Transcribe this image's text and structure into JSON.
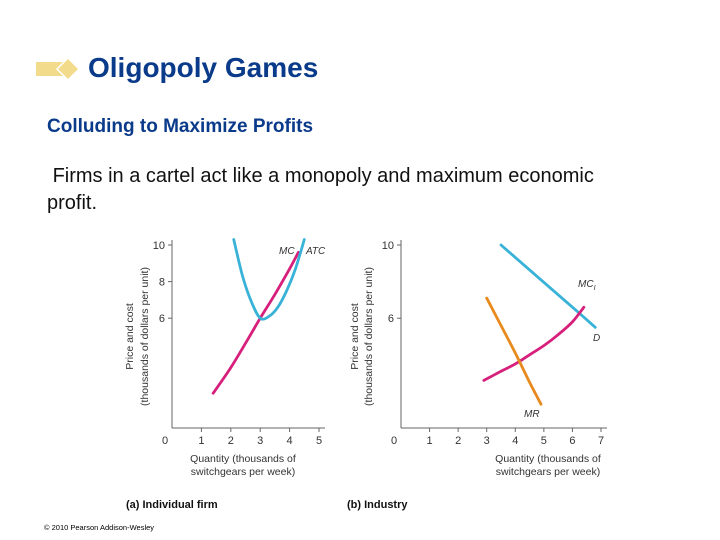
{
  "slide": {
    "title": "Oligopoly Games",
    "subtitle": "Colluding to Maximize Profits",
    "body": "Firms in a cartel act like a monopoly and maximum economic profit.",
    "copyright": "© 2010 Pearson Addison-Wesley",
    "bullet_color": "#f2dc8c"
  },
  "chart_data": [
    {
      "type": "line",
      "panel_label": "(a) Individual firm",
      "xlabel_lines": [
        "Quantity (thousands of",
        "switchgears per week)"
      ],
      "ylabel_lines": [
        "Price and cost",
        "(thousands of dollars per unit)"
      ],
      "xlim": [
        0,
        5
      ],
      "ylim": [
        0,
        10
      ],
      "x_ticks": [
        0,
        1,
        2,
        3,
        4,
        5
      ],
      "y_ticks": [
        6,
        8,
        10
      ],
      "series": [
        {
          "name": "MC",
          "color": "#d6207c",
          "x": [
            1.4,
            2.0,
            2.6,
            3.0,
            3.5,
            4.0,
            4.3
          ],
          "y": [
            1.9,
            3.3,
            4.9,
            6.0,
            7.3,
            8.7,
            9.6
          ]
        },
        {
          "name": "ATC",
          "color": "#39b2d8",
          "x": [
            2.1,
            2.4,
            2.7,
            3.0,
            3.3,
            3.6,
            3.9,
            4.2,
            4.5
          ],
          "y": [
            10.3,
            8.3,
            6.9,
            6.0,
            6.1,
            6.6,
            7.5,
            8.7,
            10.3
          ]
        }
      ]
    },
    {
      "type": "line",
      "panel_label": "(b) Industry",
      "xlabel_lines": [
        "Quantity (thousands of",
        "switchgears per week)"
      ],
      "ylabel_lines": [
        "Price and cost",
        "(thousands of dollars per unit)"
      ],
      "xlim": [
        0,
        7
      ],
      "ylim": [
        0,
        10
      ],
      "x_ticks": [
        0,
        1,
        2,
        3,
        4,
        5,
        6,
        7
      ],
      "y_ticks": [
        6,
        10
      ],
      "series": [
        {
          "name": "D",
          "color": "#39b2d8",
          "x": [
            3.5,
            6.0,
            6.8
          ],
          "y": [
            10.0,
            6.6,
            5.5
          ]
        },
        {
          "name": "MC_I",
          "color": "#d6207c",
          "x": [
            2.9,
            3.5,
            4.0,
            4.5,
            5.0,
            5.5,
            6.0,
            6.4
          ],
          "y": [
            2.6,
            3.1,
            3.5,
            4.0,
            4.5,
            5.1,
            5.8,
            6.6
          ]
        },
        {
          "name": "MR",
          "color": "#e88a1e",
          "x": [
            3.0,
            3.5,
            4.0,
            4.5,
            4.9
          ],
          "y": [
            7.1,
            5.6,
            4.1,
            2.5,
            1.3
          ]
        }
      ]
    }
  ]
}
